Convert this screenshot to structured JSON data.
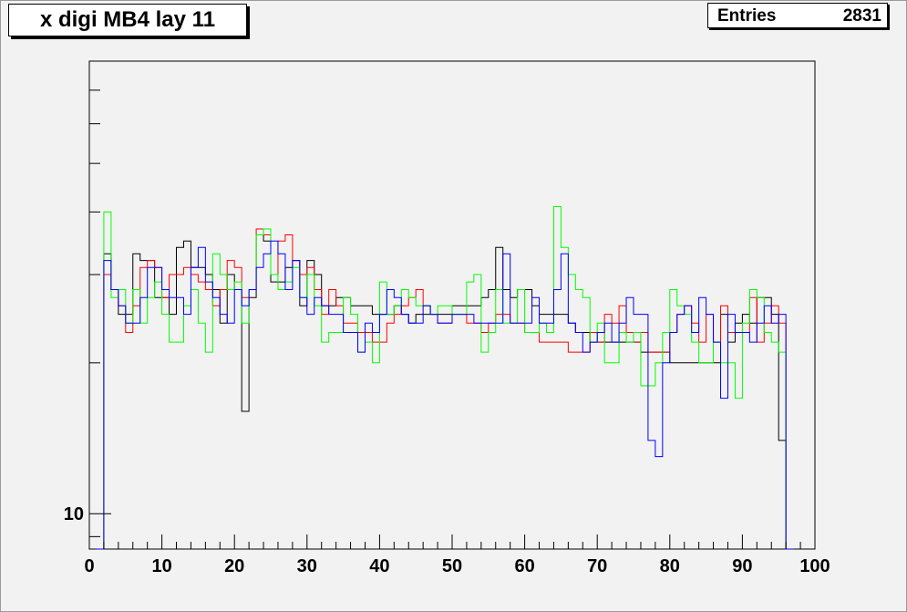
{
  "title": "x digi MB4 lay 11",
  "stats": {
    "label": "Entries",
    "value": "2831"
  },
  "colors": {
    "background": "#f2f2f2",
    "frame": "#000000"
  },
  "chart_data": {
    "type": "histogram-step",
    "xlim": [
      0,
      100
    ],
    "ylog": true,
    "ylim": [
      8.5,
      80
    ],
    "x_ticks": [
      0,
      10,
      20,
      30,
      40,
      50,
      60,
      70,
      80,
      90,
      100
    ],
    "y_tick_labels": [
      {
        "value": 10,
        "label": "10"
      }
    ],
    "bin_width": 1,
    "x_start": 1,
    "grid": false,
    "series": [
      {
        "color": "#000000",
        "values": [
          0,
          33,
          28,
          25,
          25,
          33,
          32,
          32,
          27,
          27,
          25,
          34,
          35,
          31,
          31,
          30,
          28,
          24,
          30,
          28,
          16,
          27,
          36,
          35,
          29,
          29,
          31,
          32,
          26,
          32,
          30,
          26,
          26,
          27,
          27,
          26,
          26,
          26,
          25,
          25,
          25,
          26,
          25,
          24,
          25,
          25,
          25,
          25,
          25,
          26,
          26,
          26,
          26,
          27,
          28,
          34,
          28,
          27,
          28,
          28,
          26,
          25,
          25,
          25,
          25,
          24,
          23,
          23,
          22,
          22,
          22,
          22,
          22,
          22,
          22,
          21,
          21,
          21,
          21,
          20,
          20,
          20,
          20,
          20,
          20,
          20,
          25,
          22,
          24,
          25,
          24,
          27,
          27,
          25,
          14,
          0
        ]
      },
      {
        "color": "#ff0000",
        "values": [
          0,
          30,
          28,
          26,
          23,
          26,
          31,
          32,
          31,
          27,
          30,
          30,
          31,
          30,
          29,
          28,
          26,
          28,
          32,
          31,
          27,
          28,
          37,
          36,
          30,
          35,
          36,
          32,
          30,
          31,
          28,
          25,
          28,
          26,
          24,
          24,
          23,
          23,
          22,
          22,
          24,
          25,
          26,
          27,
          28,
          26,
          25,
          24,
          24,
          25,
          25,
          24,
          24,
          23,
          24,
          25,
          25,
          24,
          24,
          23,
          23,
          22,
          22,
          22,
          22,
          21,
          21,
          21,
          23,
          22,
          25,
          24,
          26,
          23,
          22,
          23,
          21,
          21,
          21,
          23,
          25,
          26,
          24,
          22,
          25,
          22,
          26,
          23,
          23,
          23,
          27,
          22,
          24,
          26,
          24,
          0
        ]
      },
      {
        "color": "#00ff00",
        "values": [
          0,
          40,
          27,
          28,
          24,
          28,
          24,
          27,
          29,
          25,
          22,
          22,
          26,
          28,
          24,
          21,
          33,
          30,
          28,
          29,
          24,
          28,
          36,
          37,
          30,
          28,
          29,
          31,
          27,
          30,
          26,
          22,
          23,
          23,
          27,
          25,
          21,
          22,
          20,
          29,
          25,
          26,
          28,
          27,
          26,
          26,
          25,
          26,
          26,
          25,
          25,
          29,
          30,
          21,
          23,
          28,
          24,
          24,
          28,
          23,
          23,
          24,
          23,
          41,
          34,
          30,
          28,
          27,
          22,
          24,
          20,
          20,
          23,
          22,
          23,
          18,
          18,
          20,
          23,
          28,
          26,
          25,
          22,
          20,
          20,
          22,
          20,
          20,
          17,
          24,
          28,
          27,
          23,
          22,
          21,
          0
        ]
      },
      {
        "color": "#0000ff",
        "values": [
          0,
          32,
          28,
          26,
          24,
          24,
          27,
          31,
          31,
          28,
          27,
          27,
          25,
          31,
          34,
          29,
          27,
          25,
          24,
          28,
          26,
          28,
          31,
          33,
          35,
          33,
          28,
          32,
          27,
          25,
          27,
          26,
          25,
          25,
          23,
          23,
          21,
          24,
          23,
          25,
          28,
          27,
          25,
          24,
          24,
          26,
          25,
          24,
          24,
          25,
          25,
          25,
          24,
          24,
          24,
          24,
          33,
          24,
          24,
          24,
          27,
          24,
          24,
          28,
          33,
          24,
          23,
          21,
          22,
          23,
          24,
          22,
          24,
          27,
          25,
          25,
          14,
          13,
          20,
          23,
          25,
          26,
          23,
          27,
          25,
          22,
          17,
          25,
          23,
          23,
          22,
          24,
          26,
          24,
          25,
          0
        ]
      }
    ]
  }
}
